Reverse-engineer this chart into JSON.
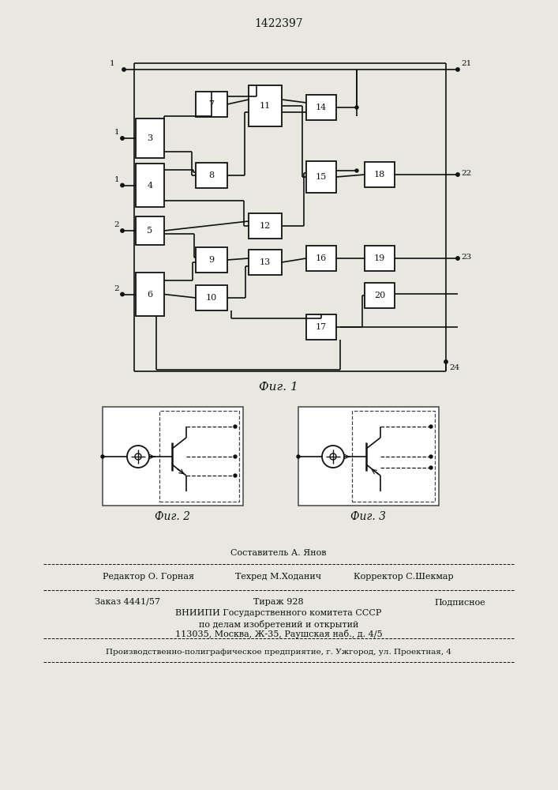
{
  "title": "1422397",
  "fig1_label": "Фиг. 1",
  "fig2_label": "Фиг. 2",
  "fig3_label": "Фиг. 3",
  "sestavitel": "Составитель А. Янов",
  "tehred": "Техред М.Ходанич",
  "redaktor": "Редактор О. Горная",
  "korrektor": "Корректор С.Шекмар",
  "zakaz": "Заказ 4441/57",
  "tirazh": "Тираж 928",
  "podpisnoe": "Подписное",
  "vniipи": "ВНИИПИ Государственного комитета СССР",
  "podel": "по делам изобретений и открытий",
  "addr": "113035, Москва, Ж-35, Раушская наб., д. 4/5",
  "bottom": "Производственно-полиграфическое предприятие, г. Ужгород, ул. Проектная, 4",
  "bg_color": "#e8e8e0",
  "line_color": "#111111"
}
